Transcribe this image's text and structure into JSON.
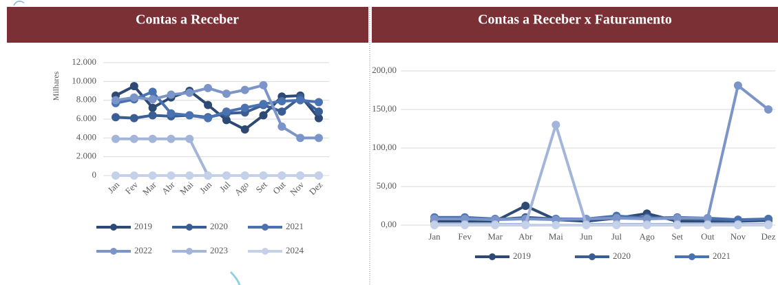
{
  "chart_data": [
    {
      "type": "line",
      "title": "Contas a Receber",
      "y_label": "Milhares",
      "categories": [
        "Jan",
        "Fev",
        "Mar",
        "Abr",
        "Mai",
        "Jun",
        "Jul",
        "Ago",
        "Set",
        "Out",
        "Nov",
        "Dez"
      ],
      "ylim": [
        0,
        12000
      ],
      "yticks": [
        {
          "value": 0,
          "label": "0"
        },
        {
          "value": 2000,
          "label": "2.000"
        },
        {
          "value": 4000,
          "label": "4.000"
        },
        {
          "value": 6000,
          "label": "6.000"
        },
        {
          "value": 8000,
          "label": "8.000"
        },
        {
          "value": 10000,
          "label": "10.000"
        },
        {
          "value": 12000,
          "label": "12.000"
        }
      ],
      "grid": true,
      "series": [
        {
          "name": "2019",
          "color": "#2e4a74",
          "values": [
            8500,
            9500,
            7200,
            8300,
            9000,
            7500,
            5900,
            4900,
            6400,
            8400,
            8500,
            6100
          ]
        },
        {
          "name": "2020",
          "color": "#3a5e93",
          "values": [
            6200,
            6100,
            6400,
            6300,
            6400,
            6200,
            6600,
            6700,
            7500,
            6800,
            8300,
            6800
          ]
        },
        {
          "name": "2021",
          "color": "#4a72b0",
          "values": [
            7700,
            8100,
            8900,
            6600,
            6400,
            6100,
            6800,
            7200,
            7600,
            7900,
            8000,
            7800
          ]
        },
        {
          "name": "2022",
          "color": "#7b95c8",
          "values": [
            8000,
            8300,
            8100,
            8600,
            8800,
            9300,
            8700,
            9100,
            9600,
            5200,
            4000,
            4000
          ]
        },
        {
          "name": "2023",
          "color": "#a3b5d8",
          "values": [
            3900,
            3900,
            3900,
            3900,
            3900,
            0,
            0,
            0,
            0,
            0,
            0,
            0
          ]
        },
        {
          "name": "2024",
          "color": "#c5d1e8",
          "values": [
            0,
            0,
            0,
            0,
            0,
            0,
            0,
            0,
            0,
            0,
            0,
            0
          ]
        }
      ]
    },
    {
      "type": "line",
      "title": "Contas a Receber x Faturamento",
      "categories": [
        "Jan",
        "Fev",
        "Mar",
        "Abr",
        "Mai",
        "Jun",
        "Jul",
        "Ago",
        "Set",
        "Out",
        "Nov",
        "Dez"
      ],
      "ylim": [
        0,
        200
      ],
      "yticks": [
        {
          "value": 0,
          "label": "0,00"
        },
        {
          "value": 50,
          "label": "50,00"
        },
        {
          "value": 100,
          "label": "100,00"
        },
        {
          "value": 150,
          "label": "150,00"
        },
        {
          "value": 200,
          "label": "200,00"
        }
      ],
      "grid": true,
      "series": [
        {
          "name": "2019",
          "color": "#2e4a74",
          "values": [
            5,
            5,
            5,
            25,
            7,
            5,
            9,
            15,
            5,
            5,
            5,
            6
          ]
        },
        {
          "name": "2020",
          "color": "#3a5e93",
          "values": [
            8,
            8,
            7,
            10,
            8,
            7,
            10,
            10,
            8,
            7,
            6,
            8
          ]
        },
        {
          "name": "2021",
          "color": "#4a72b0",
          "values": [
            10,
            10,
            8,
            8,
            8,
            8,
            12,
            9,
            10,
            9,
            7,
            8
          ]
        },
        {
          "color": "#7b95c8",
          "values": [
            8,
            8,
            7,
            8,
            7,
            8,
            9,
            8,
            9,
            9,
            181,
            150
          ]
        },
        {
          "color": "#a3b5d8",
          "values": [
            1,
            1,
            1,
            1,
            130,
            1,
            1,
            1,
            1,
            1,
            1,
            1
          ]
        },
        {
          "color": "#c5d1e8",
          "values": [
            0,
            0,
            0,
            0,
            0,
            0,
            0,
            0,
            0,
            0,
            0,
            0
          ]
        }
      ]
    }
  ]
}
